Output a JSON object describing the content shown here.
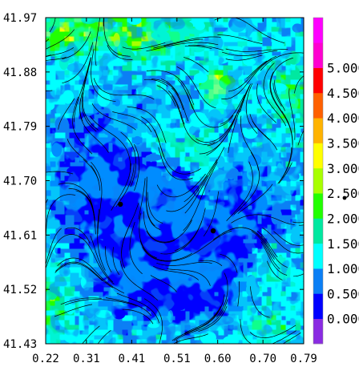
{
  "chart_data": {
    "type": "heatmap",
    "subtype": "filled contour with streamlines",
    "title": "",
    "xlabel": "",
    "ylabel": "",
    "xlim": [
      0.22,
      0.79
    ],
    "ylim": [
      41.43,
      41.97
    ],
    "x_ticks": [
      "0.22",
      "0.31",
      "0.41",
      "0.51",
      "0.60",
      "0.70",
      "0.79"
    ],
    "y_ticks": [
      "41.43",
      "41.52",
      "41.61",
      "41.70",
      "41.79",
      "41.88",
      "41.97"
    ],
    "colorbar": {
      "levels": [
        0.0,
        0.5,
        1.0,
        1.5,
        2.0,
        2.5,
        3.0,
        3.5,
        4.0,
        4.5,
        5.0
      ],
      "labels": [
        "0.000",
        "0.500",
        "1.000",
        "1.500",
        "2.000",
        "2.500",
        "3.000",
        "3.500",
        "4.000",
        "4.500",
        "5.000"
      ],
      "colors": [
        "#8a2be2",
        "#0000ff",
        "#0b7ff5",
        "#00ffff",
        "#00e8a0",
        "#22ff00",
        "#a8ff00",
        "#ffff00",
        "#ffb300",
        "#ff6000",
        "#ff0000",
        "#ff00d0",
        "#ff00ff"
      ]
    },
    "markers": [
      {
        "x": 0.385,
        "y": 41.661
      },
      {
        "x": 0.59,
        "y": 41.617
      }
    ],
    "grid": false,
    "legend": "colorbar right"
  }
}
